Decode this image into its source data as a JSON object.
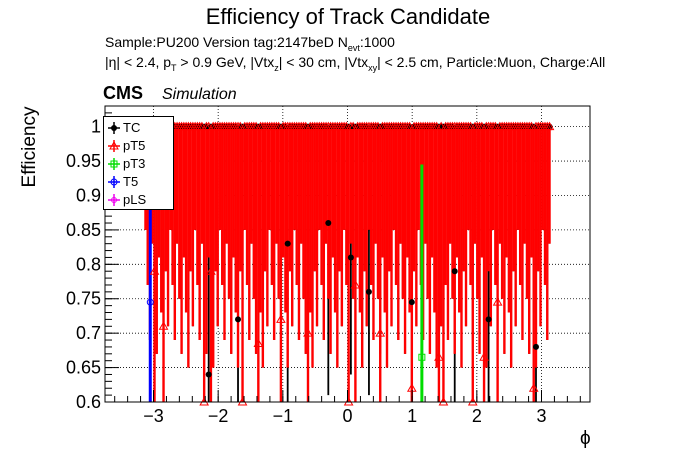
{
  "header": {
    "title": "Efficiency of Track Candidate",
    "sample_line": {
      "prefix": "Sample:PU200   Version tag:2147beD  N",
      "sub": "evt",
      "suffix": ":1000"
    },
    "cuts_line": {
      "p1": "|η| < 2.4, p",
      "s1": "T",
      "p2": " > 0.9 GeV, |Vtx",
      "s2": "z",
      "p3": "| < 30 cm, |Vtx",
      "s3": "xy",
      "p4": "| < 2.5 cm, Particle:Muon, Charge:All"
    },
    "cms": "CMS",
    "simulation": "Simulation"
  },
  "chart_data": {
    "type": "scatter",
    "title": "Efficiency of Track Candidate",
    "xlabel": "ϕ",
    "ylabel": "Efficiency",
    "xlim": [
      -3.75,
      3.75
    ],
    "ylim": [
      0.6,
      1.03
    ],
    "grid": true,
    "legend_position": "top-left",
    "x_ticks": [
      -3,
      -2,
      -1,
      0,
      1,
      2,
      3
    ],
    "x_tick_labels": [
      "−3",
      "−2",
      "−1",
      "0",
      "1",
      "2",
      "3"
    ],
    "y_ticks": [
      0.6,
      0.65,
      0.7,
      0.75,
      0.8,
      0.85,
      0.9,
      0.95,
      1.0
    ],
    "y_tick_labels": [
      "0.6",
      "0.65",
      "0.7",
      "0.75",
      "0.8",
      "0.85",
      "0.9",
      "0.95",
      "1"
    ],
    "phi_bins": 180,
    "phi_range": [
      -3.1416,
      3.1416
    ],
    "series": [
      {
        "name": "TC",
        "color": "#000000",
        "marker": "filled-circle",
        "dips": [
          [
            -2.18,
            0.64
          ],
          [
            -1.71,
            0.72
          ],
          [
            -0.95,
            0.83
          ],
          [
            -0.32,
            0.86
          ],
          [
            0.05,
            0.81
          ],
          [
            0.33,
            0.76
          ],
          [
            0.98,
            0.745
          ],
          [
            1.63,
            0.79
          ],
          [
            2.18,
            0.72
          ],
          [
            2.9,
            0.68
          ]
        ]
      },
      {
        "name": "pT5",
        "color": "#ff0000",
        "marker": "open-triangle",
        "dips": [
          [
            -3.0,
            0.79
          ],
          [
            -2.85,
            0.71
          ],
          [
            -2.25,
            0.6
          ],
          [
            -2.12,
            0.79
          ],
          [
            -1.65,
            0.6
          ],
          [
            -1.4,
            0.685
          ],
          [
            -1.05,
            0.72
          ],
          [
            -0.62,
            0.7
          ],
          [
            0.0,
            0.6
          ],
          [
            0.12,
            0.77
          ],
          [
            0.48,
            0.7
          ],
          [
            0.98,
            0.62
          ],
          [
            1.38,
            0.665
          ],
          [
            1.48,
            0.6
          ],
          [
            1.92,
            0.6
          ],
          [
            2.09,
            0.665
          ],
          [
            2.32,
            0.745
          ],
          [
            2.85,
            0.62
          ]
        ]
      },
      {
        "name": "pT3",
        "color": "#00dd00",
        "marker": "open-square",
        "dips": [
          [
            1.15,
            0.665
          ]
        ]
      },
      {
        "name": "T5",
        "color": "#0000ff",
        "marker": "open-circle",
        "dips": [
          [
            -3.05,
            0.745
          ]
        ]
      },
      {
        "name": "pLS",
        "color": "#ee00ee",
        "marker": "open-star",
        "dips": []
      }
    ],
    "colors": {
      "tc": "#000000",
      "pt5": "#ff0000",
      "pt3": "#00dd00",
      "t5": "#0000ff",
      "pls": "#ee00ee",
      "grid": "#000000"
    }
  }
}
